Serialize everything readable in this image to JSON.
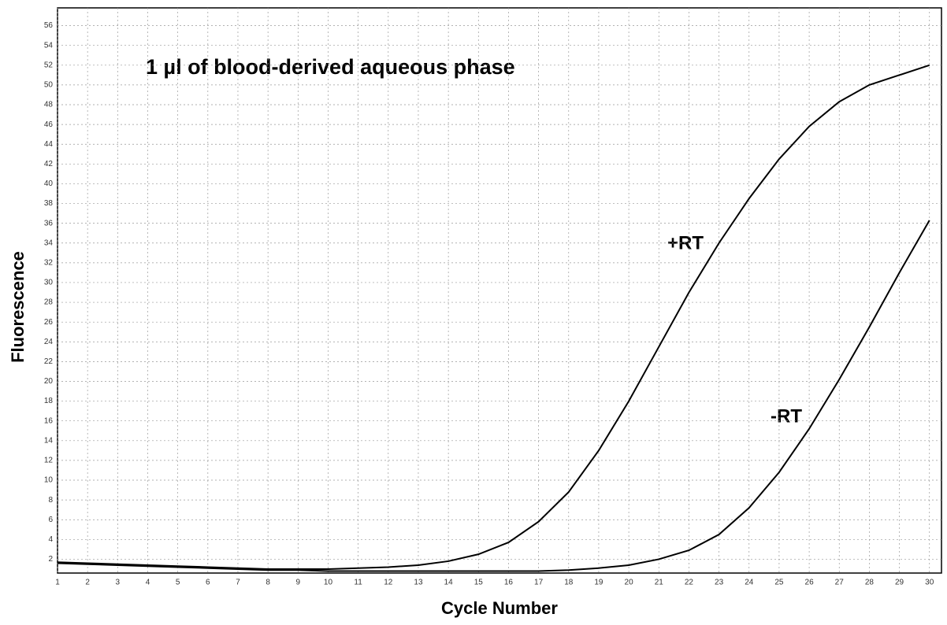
{
  "chart_data": {
    "type": "line",
    "title": "1 µl of blood-derived aqueous phase",
    "x_label": "Cycle Number",
    "y_label": "Fluorescence",
    "x": [
      1,
      2,
      3,
      4,
      5,
      6,
      7,
      8,
      9,
      10,
      11,
      12,
      13,
      14,
      15,
      16,
      17,
      18,
      19,
      20,
      21,
      22,
      23,
      24,
      25,
      26,
      27,
      28,
      29,
      30
    ],
    "series": [
      {
        "name": "+RT",
        "color": "#000000",
        "values": [
          1.7,
          1.6,
          1.5,
          1.4,
          1.3,
          1.2,
          1.1,
          1.0,
          1.0,
          1.0,
          1.1,
          1.2,
          1.4,
          1.8,
          2.5,
          3.7,
          5.8,
          8.8,
          13,
          18,
          23.5,
          29,
          34,
          38.5,
          42.5,
          45.8,
          48.3,
          50,
          51,
          52
        ]
      },
      {
        "name": "-RT",
        "color": "#000000",
        "values": [
          1.6,
          1.5,
          1.4,
          1.3,
          1.2,
          1.1,
          1.0,
          0.9,
          0.9,
          0.8,
          0.8,
          0.8,
          0.8,
          0.8,
          0.8,
          0.8,
          0.8,
          0.9,
          1.1,
          1.4,
          2,
          2.9,
          4.5,
          7.2,
          10.8,
          15.2,
          20.2,
          25.5,
          31,
          36.3
        ]
      }
    ],
    "xlim": [
      1,
      30.4
    ],
    "ylim": [
      0.6,
      57.8
    ],
    "xticks": [
      1,
      2,
      3,
      4,
      5,
      6,
      7,
      8,
      9,
      10,
      11,
      12,
      13,
      14,
      15,
      16,
      17,
      18,
      19,
      20,
      21,
      22,
      23,
      24,
      25,
      26,
      27,
      28,
      29,
      30
    ],
    "yticks": [
      2,
      4,
      6,
      8,
      10,
      12,
      14,
      16,
      18,
      20,
      22,
      24,
      26,
      28,
      30,
      32,
      34,
      36,
      38,
      40,
      42,
      44,
      46,
      48,
      50,
      52,
      54,
      56
    ],
    "grid": true
  }
}
